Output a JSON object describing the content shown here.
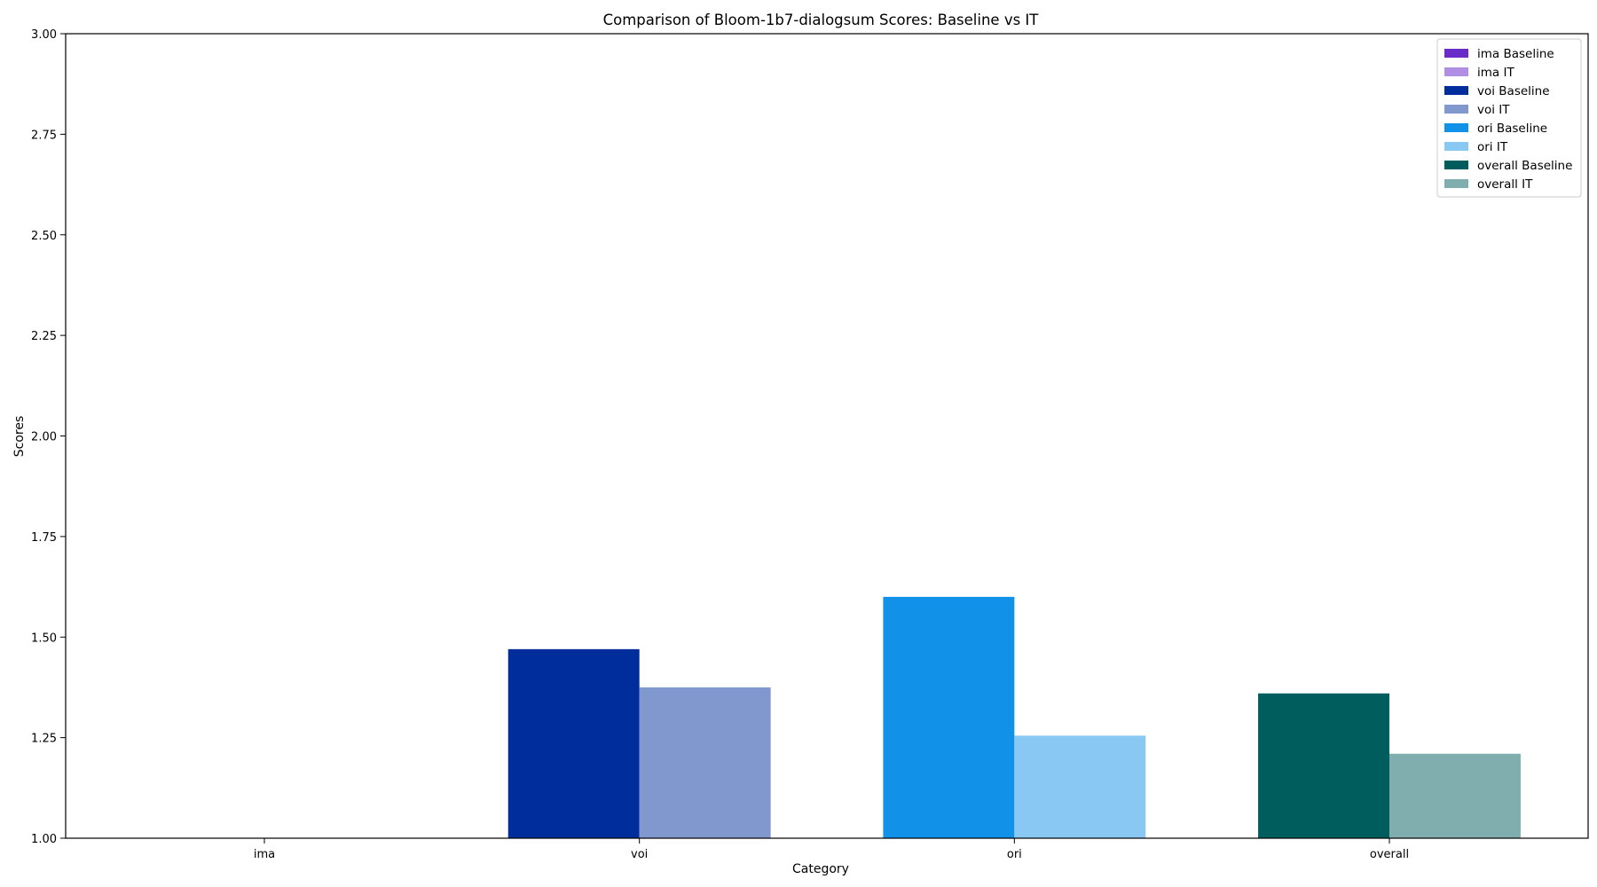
{
  "chart_data": {
    "type": "bar",
    "title": "Comparison of Bloom-1b7-dialogsum Scores: Baseline vs IT",
    "xlabel": "Category",
    "ylabel": "Scores",
    "ylim": [
      1.0,
      3.0
    ],
    "yticks": [
      "1.00",
      "1.25",
      "1.50",
      "1.75",
      "2.00",
      "2.25",
      "2.50",
      "2.75",
      "3.00"
    ],
    "categories": [
      "ima",
      "voi",
      "ori",
      "overall"
    ],
    "legend_position": "top-right",
    "series": [
      {
        "name": "ima Baseline",
        "category": "ima",
        "value": 1.0,
        "color": "#6a2cc9"
      },
      {
        "name": "ima IT",
        "category": "ima",
        "value": 1.0,
        "color": "#b08ee3"
      },
      {
        "name": "voi Baseline",
        "category": "voi",
        "value": 1.47,
        "color": "#002d9c"
      },
      {
        "name": "voi IT",
        "category": "voi",
        "value": 1.375,
        "color": "#8098cd"
      },
      {
        "name": "ori Baseline",
        "category": "ori",
        "value": 1.6,
        "color": "#1192e8"
      },
      {
        "name": "ori IT",
        "category": "ori",
        "value": 1.255,
        "color": "#88c8f3"
      },
      {
        "name": "overall Baseline",
        "category": "overall",
        "value": 1.36,
        "color": "#005d5d"
      },
      {
        "name": "overall IT",
        "category": "overall",
        "value": 1.21,
        "color": "#80aeae"
      }
    ]
  }
}
